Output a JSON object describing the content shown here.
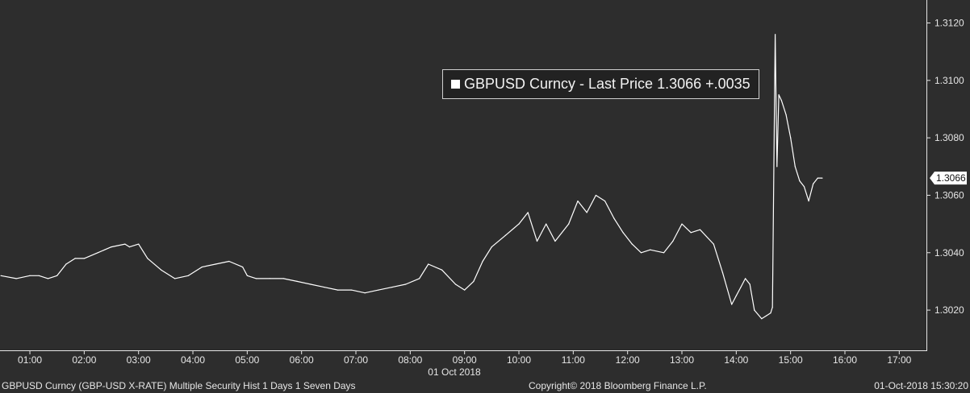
{
  "chart_data": {
    "type": "line",
    "date_label": "01 Oct 2018",
    "x_ticks": [
      "01:00",
      "02:00",
      "03:00",
      "04:00",
      "05:00",
      "06:00",
      "07:00",
      "08:00",
      "09:00",
      "10:00",
      "11:00",
      "12:00",
      "13:00",
      "14:00",
      "15:00",
      "16:00",
      "17:00"
    ],
    "y_ticks": [
      "1.3020",
      "1.3040",
      "1.3060",
      "1.3080",
      "1.3100",
      "1.3120"
    ],
    "ylim": [
      1.3006,
      1.3128
    ],
    "xlim_hours": [
      0.45,
      17.5
    ],
    "grid": false,
    "legend_position": "top-center",
    "series": [
      {
        "name": "GBPUSD Curncy - Last Price 1.3066  +.0035",
        "color": "#ffffff",
        "x": [
          "00:28",
          "00:45",
          "01:00",
          "01:10",
          "01:20",
          "01:30",
          "01:40",
          "01:50",
          "02:00",
          "02:15",
          "02:30",
          "02:45",
          "02:50",
          "03:00",
          "03:10",
          "03:25",
          "03:40",
          "03:55",
          "04:10",
          "04:25",
          "04:40",
          "04:55",
          "05:00",
          "05:10",
          "05:25",
          "05:40",
          "05:55",
          "06:10",
          "06:25",
          "06:40",
          "06:55",
          "07:10",
          "07:25",
          "07:40",
          "07:55",
          "08:10",
          "08:20",
          "08:35",
          "08:50",
          "09:00",
          "09:10",
          "09:20",
          "09:30",
          "09:45",
          "10:00",
          "10:10",
          "10:20",
          "10:30",
          "10:40",
          "10:55",
          "11:05",
          "11:15",
          "11:25",
          "11:35",
          "11:45",
          "11:55",
          "12:05",
          "12:15",
          "12:25",
          "12:40",
          "12:50",
          "13:00",
          "13:10",
          "13:20",
          "13:35",
          "13:45",
          "13:55",
          "14:00",
          "14:05",
          "14:10",
          "14:15",
          "14:20",
          "14:28",
          "14:33",
          "14:38",
          "14:40",
          "14:43",
          "14:45",
          "14:47",
          "14:50",
          "14:55",
          "15:00",
          "15:05",
          "15:10",
          "15:15",
          "15:20",
          "15:25",
          "15:30",
          "15:35"
        ],
        "values": [
          1.3032,
          1.3031,
          1.3032,
          1.3032,
          1.3031,
          1.3032,
          1.3036,
          1.3038,
          1.3038,
          1.304,
          1.3042,
          1.3043,
          1.3042,
          1.3043,
          1.3038,
          1.3034,
          1.3031,
          1.3032,
          1.3035,
          1.3036,
          1.3037,
          1.3035,
          1.3032,
          1.3031,
          1.3031,
          1.3031,
          1.303,
          1.3029,
          1.3028,
          1.3027,
          1.3027,
          1.3026,
          1.3027,
          1.3028,
          1.3029,
          1.3031,
          1.3036,
          1.3034,
          1.3029,
          1.3027,
          1.303,
          1.3037,
          1.3042,
          1.3046,
          1.305,
          1.3054,
          1.3044,
          1.305,
          1.3044,
          1.305,
          1.3058,
          1.3054,
          1.306,
          1.3058,
          1.3052,
          1.3047,
          1.3043,
          1.304,
          1.3041,
          1.304,
          1.3044,
          1.305,
          1.3047,
          1.3048,
          1.3043,
          1.3033,
          1.3022,
          1.3025,
          1.3028,
          1.3031,
          1.3029,
          1.302,
          1.3017,
          1.3018,
          1.3019,
          1.3021,
          1.3116,
          1.307,
          1.3095,
          1.3093,
          1.3088,
          1.308,
          1.307,
          1.3065,
          1.3063,
          1.3058,
          1.3064,
          1.3066,
          1.3066
        ]
      }
    ]
  },
  "last_price_tag": "1.3066",
  "footer": {
    "left": "GBPUSD Curncy (GBP-USD X-RATE) Multiple Security Hist   1 Days 1 Seven Days",
    "center": "Copyright© 2018 Bloomberg Finance L.P.",
    "right": "01-Oct-2018 15:30:20"
  }
}
